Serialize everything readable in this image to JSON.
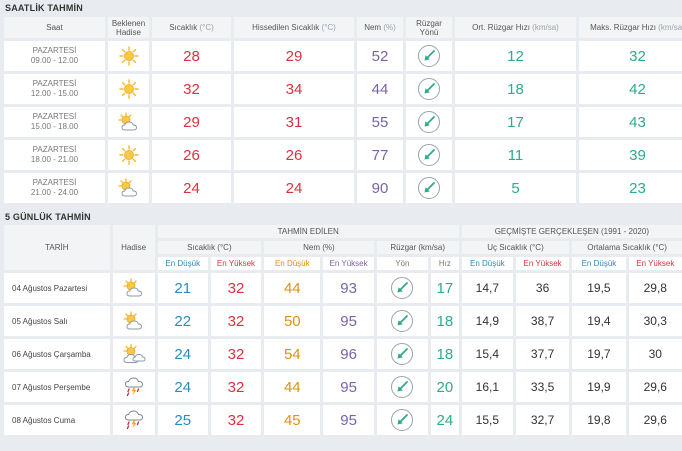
{
  "hourly": {
    "title": "SAATLİK TAHMİN",
    "headers": {
      "time": "Saat",
      "event_line1": "Beklenen",
      "event_line2": "Hadise",
      "temp": "Sıcaklık",
      "temp_unit": "(°C)",
      "feels": "Hissedilen Sıcaklık",
      "feels_unit": "(°C)",
      "humidity": "Nem",
      "humidity_unit": "(%)",
      "wind_dir": "Rüzgar Yönü",
      "avg_wind": "Ort. Rüzgar Hızı",
      "avg_wind_unit": "(km/sa)",
      "max_wind": "Maks. Rüzgar Hızı",
      "max_wind_unit": "(km/sa)"
    },
    "rows": [
      {
        "day": "PAZARTESİ",
        "time": "09.00 - 12.00",
        "icon": "sun-icon",
        "temp": "28",
        "feels": "29",
        "humidity": "52",
        "avg": "12",
        "max": "32"
      },
      {
        "day": "PAZARTESİ",
        "time": "12.00 - 15.00",
        "icon": "sun-icon",
        "temp": "32",
        "feels": "34",
        "humidity": "44",
        "avg": "18",
        "max": "42"
      },
      {
        "day": "PAZARTESİ",
        "time": "15.00 - 18.00",
        "icon": "partly-cloudy-icon",
        "temp": "29",
        "feels": "31",
        "humidity": "55",
        "avg": "17",
        "max": "43"
      },
      {
        "day": "PAZARTESİ",
        "time": "18.00 - 21.00",
        "icon": "sun-icon",
        "temp": "26",
        "feels": "26",
        "humidity": "77",
        "avg": "11",
        "max": "39"
      },
      {
        "day": "PAZARTESİ",
        "time": "21.00 - 24.00",
        "icon": "partly-cloudy-icon",
        "temp": "24",
        "feels": "24",
        "humidity": "90",
        "avg": "5",
        "max": "23"
      }
    ]
  },
  "daily": {
    "title": "5 GÜNLÜK TAHMİN",
    "headers": {
      "date": "TARİH",
      "event": "Hadise",
      "forecast": "TAHMİN EDİLEN",
      "history": "GEÇMİŞTE GERÇEKLEŞEN (1991 - 2020)",
      "temp": "Sıcaklık (°C)",
      "humidity": "Nem (%)",
      "wind": "Rüzgar (km/sa)",
      "extreme": "Uç Sıcaklık (°C)",
      "average": "Ortalama Sıcaklık (°C)",
      "low": "En Düşük",
      "high": "En Yüksek",
      "dir": "Yön",
      "speed": "Hız"
    },
    "rows": [
      {
        "date": "04 Ağustos Pazartesi",
        "icon": "partly-cloudy-icon",
        "tmin": "21",
        "tmax": "32",
        "hmin": "44",
        "hmax": "93",
        "speed": "17",
        "ulow": "14,7",
        "uhigh": "36",
        "alow": "19,5",
        "ahigh": "29,8"
      },
      {
        "date": "05 Ağustos Salı",
        "icon": "partly-cloudy-icon",
        "tmin": "22",
        "tmax": "32",
        "hmin": "50",
        "hmax": "95",
        "speed": "18",
        "ulow": "14,9",
        "uhigh": "38,7",
        "alow": "19,4",
        "ahigh": "30,3"
      },
      {
        "date": "06 Ağustos Çarşamba",
        "icon": "cloudy-sun-icon",
        "tmin": "24",
        "tmax": "32",
        "hmin": "54",
        "hmax": "96",
        "speed": "18",
        "ulow": "15,4",
        "uhigh": "37,7",
        "alow": "19,7",
        "ahigh": "30"
      },
      {
        "date": "07 Ağustos Perşembe",
        "icon": "thunderstorm-icon",
        "tmin": "24",
        "tmax": "32",
        "hmin": "44",
        "hmax": "95",
        "speed": "20",
        "ulow": "16,1",
        "uhigh": "33,5",
        "alow": "19,9",
        "ahigh": "29,6"
      },
      {
        "date": "08 Ağustos Cuma",
        "icon": "thunderstorm-icon",
        "tmin": "25",
        "tmax": "32",
        "hmin": "45",
        "hmax": "95",
        "speed": "24",
        "ulow": "15,5",
        "uhigh": "32,7",
        "alow": "19,8",
        "ahigh": "29,6"
      }
    ]
  },
  "colors": {
    "red": "#d9323f",
    "purple": "#7a64a8",
    "teal": "#2eaa8c",
    "blue": "#2a8bc0",
    "orange": "#e0900e",
    "wind_arrow": "#2eaa8c"
  }
}
